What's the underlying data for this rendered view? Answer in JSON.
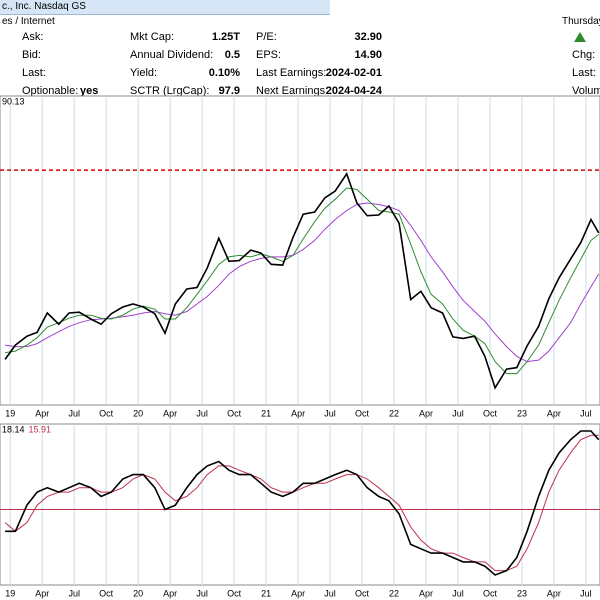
{
  "header": {
    "title": "c., Inc. Nasdaq GS",
    "sector": "es / Internet",
    "day": "Thursday",
    "col1": [
      {
        "label": "Ask:"
      },
      {
        "label": "Bid:"
      },
      {
        "label": "Last:"
      },
      {
        "label": "Optionable:",
        "value": "yes"
      }
    ],
    "col2": [
      {
        "label": "Mkt Cap:",
        "value": "1.25T"
      },
      {
        "label": "Annual Dividend:",
        "value": "0.5"
      },
      {
        "label": "Yield:",
        "value": "0.10%"
      },
      {
        "label": "SCTR (LrgCap):",
        "value": "97.9"
      }
    ],
    "col3": [
      {
        "label": "P/E:",
        "value": "32.90"
      },
      {
        "label": "EPS:",
        "value": "14.90"
      },
      {
        "label": "Last Earnings:",
        "value": "2024-02-01"
      },
      {
        "label": "Next Earnings:",
        "value": "2024-04-24"
      }
    ],
    "col4": [
      {
        "label": "Chg:"
      },
      {
        "label": "Last:"
      },
      {
        "label": "Volum"
      }
    ]
  },
  "chart_data": [
    {
      "type": "line",
      "readouts": [
        "90.13"
      ],
      "hline": 384,
      "hline_color": "#dd0000",
      "xlim": [
        2018.92,
        2023.61
      ],
      "ylim": [
        70,
        483
      ],
      "xticks": [
        {
          "value": 2019,
          "label": "19"
        },
        {
          "value": 2019.25,
          "label": "Apr"
        },
        {
          "value": 2019.5,
          "label": "Jul"
        },
        {
          "value": 2019.75,
          "label": "Oct"
        },
        {
          "value": 2020,
          "label": "20"
        },
        {
          "value": 2020.25,
          "label": "Apr"
        },
        {
          "value": 2020.5,
          "label": "Jul"
        },
        {
          "value": 2020.75,
          "label": "Oct"
        },
        {
          "value": 2021,
          "label": "21"
        },
        {
          "value": 2021.25,
          "label": "Apr"
        },
        {
          "value": 2021.5,
          "label": "Jul"
        },
        {
          "value": 2021.75,
          "label": "Oct"
        },
        {
          "value": 2022,
          "label": "22"
        },
        {
          "value": 2022.25,
          "label": "Apr"
        },
        {
          "value": 2022.5,
          "label": "Jul"
        },
        {
          "value": 2022.75,
          "label": "Oct"
        },
        {
          "value": 2023,
          "label": "23"
        },
        {
          "value": 2023.25,
          "label": "Apr"
        },
        {
          "value": 2023.5,
          "label": "Jul"
        }
      ],
      "x": [
        2018.96,
        2019.04,
        2019.13,
        2019.21,
        2019.29,
        2019.38,
        2019.46,
        2019.54,
        2019.63,
        2019.71,
        2019.79,
        2019.88,
        2019.96,
        2020.04,
        2020.13,
        2020.21,
        2020.29,
        2020.38,
        2020.46,
        2020.54,
        2020.63,
        2020.71,
        2020.79,
        2020.88,
        2020.96,
        2021.04,
        2021.13,
        2021.21,
        2021.29,
        2021.38,
        2021.46,
        2021.54,
        2021.63,
        2021.71,
        2021.79,
        2021.88,
        2021.96,
        2022.04,
        2022.13,
        2022.21,
        2022.29,
        2022.38,
        2022.46,
        2022.54,
        2022.63,
        2022.71,
        2022.79,
        2022.88,
        2022.96,
        2023.04,
        2023.13,
        2023.21,
        2023.29,
        2023.38,
        2023.46,
        2023.54,
        2023.6
      ],
      "series": [
        {
          "color": "#000000",
          "width": 1.6,
          "values": [
            131,
            150,
            162,
            167,
            193,
            178,
            193,
            194,
            185,
            178,
            192,
            201,
            205,
            201,
            192,
            166,
            205,
            225,
            227,
            253,
            293,
            262,
            263,
            277,
            273,
            258,
            257,
            294,
            325,
            328,
            347,
            356,
            379,
            340,
            323,
            324,
            336,
            313,
            211,
            222,
            200,
            193,
            161,
            159,
            162,
            135,
            93,
            118,
            120,
            149,
            175,
            212,
            240,
            265,
            287,
            318,
            300
          ]
        },
        {
          "color": "#2e8b2e",
          "width": 1,
          "values": [
            140,
            142,
            150,
            160,
            174,
            180,
            186,
            190,
            190,
            186,
            185,
            190,
            198,
            202,
            198,
            185,
            185,
            200,
            218,
            236,
            258,
            268,
            270,
            268,
            272,
            268,
            262,
            270,
            292,
            315,
            333,
            345,
            360,
            358,
            345,
            330,
            328,
            325,
            285,
            248,
            218,
            205,
            185,
            170,
            162,
            152,
            128,
            112,
            112,
            128,
            150,
            180,
            210,
            240,
            265,
            290,
            298
          ]
        },
        {
          "color": "#a040d0",
          "width": 1,
          "values": [
            150,
            148,
            148,
            152,
            160,
            168,
            175,
            180,
            184,
            185,
            186,
            188,
            190,
            193,
            195,
            192,
            190,
            195,
            205,
            215,
            230,
            245,
            255,
            262,
            266,
            268,
            268,
            270,
            278,
            290,
            305,
            318,
            330,
            338,
            340,
            338,
            335,
            330,
            310,
            290,
            268,
            248,
            228,
            210,
            195,
            182,
            165,
            148,
            135,
            128,
            130,
            142,
            160,
            180,
            205,
            228,
            245
          ]
        }
      ]
    },
    {
      "type": "line",
      "readouts": [
        "18.14",
        "15.91"
      ],
      "hline": 0,
      "hline_color": "#c0304a",
      "xlim": [
        2018.92,
        2023.61
      ],
      "ylim": [
        -17.3,
        19.6
      ],
      "xticks": [
        {
          "value": 2019,
          "label": "19"
        },
        {
          "value": 2019.25,
          "label": "Apr"
        },
        {
          "value": 2019.5,
          "label": "Jul"
        },
        {
          "value": 2019.75,
          "label": "Oct"
        },
        {
          "value": 2020,
          "label": "20"
        },
        {
          "value": 2020.25,
          "label": "Apr"
        },
        {
          "value": 2020.5,
          "label": "Jul"
        },
        {
          "value": 2020.75,
          "label": "Oct"
        },
        {
          "value": 2021,
          "label": "21"
        },
        {
          "value": 2021.25,
          "label": "Apr"
        },
        {
          "value": 2021.5,
          "label": "Jul"
        },
        {
          "value": 2021.75,
          "label": "Oct"
        },
        {
          "value": 2022,
          "label": "22"
        },
        {
          "value": 2022.25,
          "label": "Apr"
        },
        {
          "value": 2022.5,
          "label": "Jul"
        },
        {
          "value": 2022.75,
          "label": "Oct"
        },
        {
          "value": 2023,
          "label": "23"
        },
        {
          "value": 2023.25,
          "label": "Apr"
        },
        {
          "value": 2023.5,
          "label": "Jul"
        }
      ],
      "x": [
        2018.96,
        2019.04,
        2019.13,
        2019.21,
        2019.29,
        2019.38,
        2019.46,
        2019.54,
        2019.63,
        2019.71,
        2019.79,
        2019.88,
        2019.96,
        2020.04,
        2020.13,
        2020.21,
        2020.29,
        2020.38,
        2020.46,
        2020.54,
        2020.63,
        2020.71,
        2020.79,
        2020.88,
        2020.96,
        2021.04,
        2021.13,
        2021.21,
        2021.29,
        2021.38,
        2021.46,
        2021.54,
        2021.63,
        2021.71,
        2021.79,
        2021.88,
        2021.96,
        2022.04,
        2022.13,
        2022.21,
        2022.29,
        2022.38,
        2022.46,
        2022.54,
        2022.63,
        2022.71,
        2022.79,
        2022.88,
        2022.96,
        2023.04,
        2023.13,
        2023.21,
        2023.29,
        2023.38,
        2023.46,
        2023.54,
        2023.6
      ],
      "series": [
        {
          "color": "#000000",
          "width": 1.6,
          "values": [
            -5,
            -5,
            1,
            4,
            5,
            4,
            5,
            6,
            5,
            3,
            4,
            7,
            8,
            8,
            5,
            0,
            1,
            5,
            8,
            10,
            11,
            9,
            8,
            8,
            6,
            4,
            3,
            4,
            6,
            6,
            7,
            8,
            9,
            8,
            5,
            3,
            2,
            -1,
            -8,
            -9,
            -10,
            -10,
            -11,
            -12,
            -12,
            -13,
            -15,
            -14,
            -11,
            -5,
            3,
            9,
            13,
            16,
            18,
            18,
            16
          ]
        },
        {
          "color": "#c0304a",
          "width": 1,
          "values": [
            -3,
            -5,
            -3,
            1,
            3,
            4,
            4,
            5,
            5,
            4,
            4,
            5,
            7,
            8,
            7,
            4,
            2,
            3,
            5,
            8,
            10,
            10,
            9,
            8,
            7,
            5,
            4,
            4,
            5,
            6,
            6,
            7,
            8,
            8,
            7,
            5,
            3,
            1,
            -4,
            -7,
            -9,
            -10,
            -10,
            -11,
            -12,
            -12,
            -14,
            -14,
            -13,
            -9,
            -3,
            4,
            9,
            13,
            16,
            17,
            17
          ]
        }
      ]
    }
  ]
}
